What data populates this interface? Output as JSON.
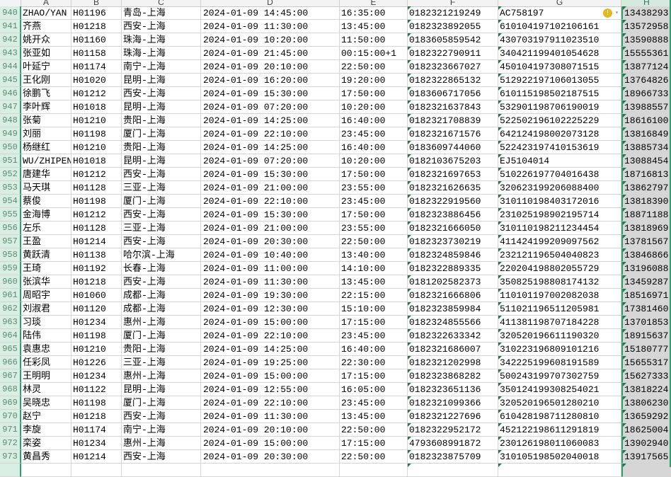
{
  "columns": [
    "A",
    "B",
    "C",
    "D",
    "E",
    "F",
    "G",
    "H"
  ],
  "selected_column": "H",
  "colors": {
    "selection": "#2f9e6e",
    "row_header_selected": "#d9eee3",
    "warning": "#e6b820"
  },
  "warning_cell": {
    "row": "940",
    "column": "G",
    "icon": "warning-icon"
  },
  "rows": [
    {
      "n": "940",
      "a": "ZHAO/YAN",
      "b": "H01196",
      "c": "青岛-上海",
      "d": "2024-01-09 14:45:00",
      "e": "16:35:00",
      "f": "0182321219249",
      "g": "AC758197",
      "h": "13438293"
    },
    {
      "n": "941",
      "a": "齐燕",
      "b": "H01218",
      "c": "西安-上海",
      "d": "2024-01-09 11:30:00",
      "e": "13:45:00",
      "f": "0182323892055",
      "g": "610104197102106161",
      "h": "13572958"
    },
    {
      "n": "942",
      "a": "姚开众",
      "b": "H01160",
      "c": "珠海-上海",
      "d": "2024-01-09 10:20:00",
      "e": "11:50:00",
      "f": "0183605859542",
      "g": "430703197911023510",
      "h": "13590888"
    },
    {
      "n": "943",
      "a": "张亚如",
      "b": "H01158",
      "c": "珠海-上海",
      "d": "2024-01-09 21:45:00",
      "e": "00:15:00+1",
      "f": "0182322790911",
      "g": "340421199401054628",
      "h": "15555361"
    },
    {
      "n": "944",
      "a": "叶延宁",
      "b": "H01174",
      "c": "南宁-上海",
      "d": "2024-01-09 20:10:00",
      "e": "22:50:00",
      "f": "0182323667027",
      "g": "450104197308071515",
      "h": "13877124"
    },
    {
      "n": "945",
      "a": "王化刚",
      "b": "H01020",
      "c": "昆明-上海",
      "d": "2024-01-09 16:20:00",
      "e": "19:20:00",
      "f": "0182322865132",
      "g": "512922197106013055",
      "h": "13764826"
    },
    {
      "n": "946",
      "a": "徐鹏飞",
      "b": "H01212",
      "c": "西安-上海",
      "d": "2024-01-09 15:30:00",
      "e": "17:50:00",
      "f": "0183606717056",
      "g": "610115198502187515",
      "h": "18966733"
    },
    {
      "n": "947",
      "a": "李叶辉",
      "b": "H01018",
      "c": "昆明-上海",
      "d": "2024-01-09 07:20:00",
      "e": "10:20:00",
      "f": "0182321637843",
      "g": "532901198706190019",
      "h": "13988557"
    },
    {
      "n": "948",
      "a": "张菊",
      "b": "H01210",
      "c": "贵阳-上海",
      "d": "2024-01-09 14:25:00",
      "e": "16:40:00",
      "f": "0182321708839",
      "g": "522502196102225229",
      "h": "18616100"
    },
    {
      "n": "949",
      "a": "刘丽",
      "b": "H01198",
      "c": "厦门-上海",
      "d": "2024-01-09 22:10:00",
      "e": "23:45:00",
      "f": "0182321671576",
      "g": "642124198002073128",
      "h": "13816849"
    },
    {
      "n": "950",
      "a": "杨继红",
      "b": "H01210",
      "c": "贵阳-上海",
      "d": "2024-01-09 14:25:00",
      "e": "16:40:00",
      "f": "0183609744060",
      "g": "522423197410153619",
      "h": "13885734"
    },
    {
      "n": "951",
      "a": "WU/ZHIPEN",
      "b": "H01018",
      "c": "昆明-上海",
      "d": "2024-01-09 07:20:00",
      "e": "10:20:00",
      "f": "0182103675203",
      "g": "EJ5104014",
      "h": "13088454"
    },
    {
      "n": "952",
      "a": "唐建华",
      "b": "H01212",
      "c": "西安-上海",
      "d": "2024-01-09 15:30:00",
      "e": "17:50:00",
      "f": "0182321697653",
      "g": "510226197704016438",
      "h": "18716813"
    },
    {
      "n": "953",
      "a": "马天琪",
      "b": "H01128",
      "c": "三亚-上海",
      "d": "2024-01-09 21:00:00",
      "e": "23:55:00",
      "f": "0182321626635",
      "g": "320623199206088400",
      "h": "13862797"
    },
    {
      "n": "954",
      "a": "蔡俊",
      "b": "H01198",
      "c": "厦门-上海",
      "d": "2024-01-09 22:10:00",
      "e": "23:45:00",
      "f": "0182322919560",
      "g": "310110198403172016",
      "h": "13818390"
    },
    {
      "n": "955",
      "a": "金海博",
      "b": "H01212",
      "c": "西安-上海",
      "d": "2024-01-09 15:30:00",
      "e": "17:50:00",
      "f": "0182323886456",
      "g": "231025198902195714",
      "h": "18871188"
    },
    {
      "n": "956",
      "a": "左乐",
      "b": "H01128",
      "c": "三亚-上海",
      "d": "2024-01-09 21:00:00",
      "e": "23:55:00",
      "f": "0182321666050",
      "g": "310110198211234454",
      "h": "13818969"
    },
    {
      "n": "957",
      "a": "王盈",
      "b": "H01214",
      "c": "西安-上海",
      "d": "2024-01-09 20:30:00",
      "e": "22:50:00",
      "f": "0182323730219",
      "g": "411424199209097562",
      "h": "13781567"
    },
    {
      "n": "958",
      "a": "黄跃清",
      "b": "H01138",
      "c": "哈尔滨-上海",
      "d": "2024-01-09 10:40:00",
      "e": "13:40:00",
      "f": "0182324859846",
      "g": "232121196504040823",
      "h": "13846866"
    },
    {
      "n": "959",
      "a": "王琦",
      "b": "H01192",
      "c": "长春-上海",
      "d": "2024-01-09 11:00:00",
      "e": "14:10:00",
      "f": "0182322889335",
      "g": "220204198802055729",
      "h": "13196088"
    },
    {
      "n": "960",
      "a": "张滨华",
      "b": "H01218",
      "c": "西安-上海",
      "d": "2024-01-09 11:30:00",
      "e": "13:45:00",
      "f": "0181202582373",
      "g": "350825198808174132",
      "h": "13459287"
    },
    {
      "n": "961",
      "a": "周昭宇",
      "b": "H01060",
      "c": "成都-上海",
      "d": "2024-01-09 19:30:00",
      "e": "22:15:00",
      "f": "0182321666806",
      "g": "110101197002082038",
      "h": "18516971"
    },
    {
      "n": "962",
      "a": "刘淑君",
      "b": "H01120",
      "c": "成都-上海",
      "d": "2024-01-09 12:30:00",
      "e": "15:10:00",
      "f": "0182323859984",
      "g": "511021196511205981",
      "h": "17381460"
    },
    {
      "n": "963",
      "a": "习琰",
      "b": "H01234",
      "c": "惠州-上海",
      "d": "2024-01-09 15:00:00",
      "e": "17:15:00",
      "f": "0182324855566",
      "g": "411381198707184228",
      "h": "13701853"
    },
    {
      "n": "964",
      "a": "陆伟",
      "b": "H01198",
      "c": "厦门-上海",
      "d": "2024-01-09 22:10:00",
      "e": "23:45:00",
      "f": "0182322633342",
      "g": "320520196611190320",
      "h": "18915637"
    },
    {
      "n": "965",
      "a": "袁惠忠",
      "b": "H01210",
      "c": "贵阳-上海",
      "d": "2024-01-09 14:25:00",
      "e": "16:40:00",
      "f": "0182321686007",
      "g": "310223196809101216",
      "h": "15180777"
    },
    {
      "n": "966",
      "a": "任彩凤",
      "b": "H01226",
      "c": "三亚-上海",
      "d": "2024-01-09 19:25:00",
      "e": "22:30:00",
      "f": "0182321202998",
      "g": "342225199608191589",
      "h": "15655317"
    },
    {
      "n": "967",
      "a": "王明明",
      "b": "H01234",
      "c": "惠州-上海",
      "d": "2024-01-09 15:00:00",
      "e": "17:15:00",
      "f": "0182323868282",
      "g": "500243199707302759",
      "h": "15627333"
    },
    {
      "n": "968",
      "a": "林灵",
      "b": "H01122",
      "c": "昆明-上海",
      "d": "2024-01-09 12:55:00",
      "e": "16:05:00",
      "f": "0182323651136",
      "g": "350124199308254021",
      "h": "13818224"
    },
    {
      "n": "969",
      "a": "吴晓忠",
      "b": "H01198",
      "c": "厦门-上海",
      "d": "2024-01-09 22:10:00",
      "e": "23:45:00",
      "f": "0182321099366",
      "g": "320520196501280210",
      "h": "13806230"
    },
    {
      "n": "970",
      "a": "赵宁",
      "b": "H01218",
      "c": "西安-上海",
      "d": "2024-01-09 11:30:00",
      "e": "13:45:00",
      "f": "0182321227696",
      "g": "610428198711280810",
      "h": "13659292"
    },
    {
      "n": "971",
      "a": "李旋",
      "b": "H01174",
      "c": "南宁-上海",
      "d": "2024-01-09 20:10:00",
      "e": "22:50:00",
      "f": "0182322952172",
      "g": "452122198611291819",
      "h": "18625004"
    },
    {
      "n": "972",
      "a": "栾姿",
      "b": "H01234",
      "c": "惠州-上海",
      "d": "2024-01-09 15:00:00",
      "e": "17:15:00",
      "f": "4793608991872",
      "g": "230126198011060083",
      "h": "13902940"
    },
    {
      "n": "973",
      "a": "黄昌秀",
      "b": "H01214",
      "c": "西安-上海",
      "d": "2024-01-09 20:30:00",
      "e": "22:50:00",
      "f": "0182323875709",
      "g": "310105198502040018",
      "h": "13917565"
    }
  ]
}
